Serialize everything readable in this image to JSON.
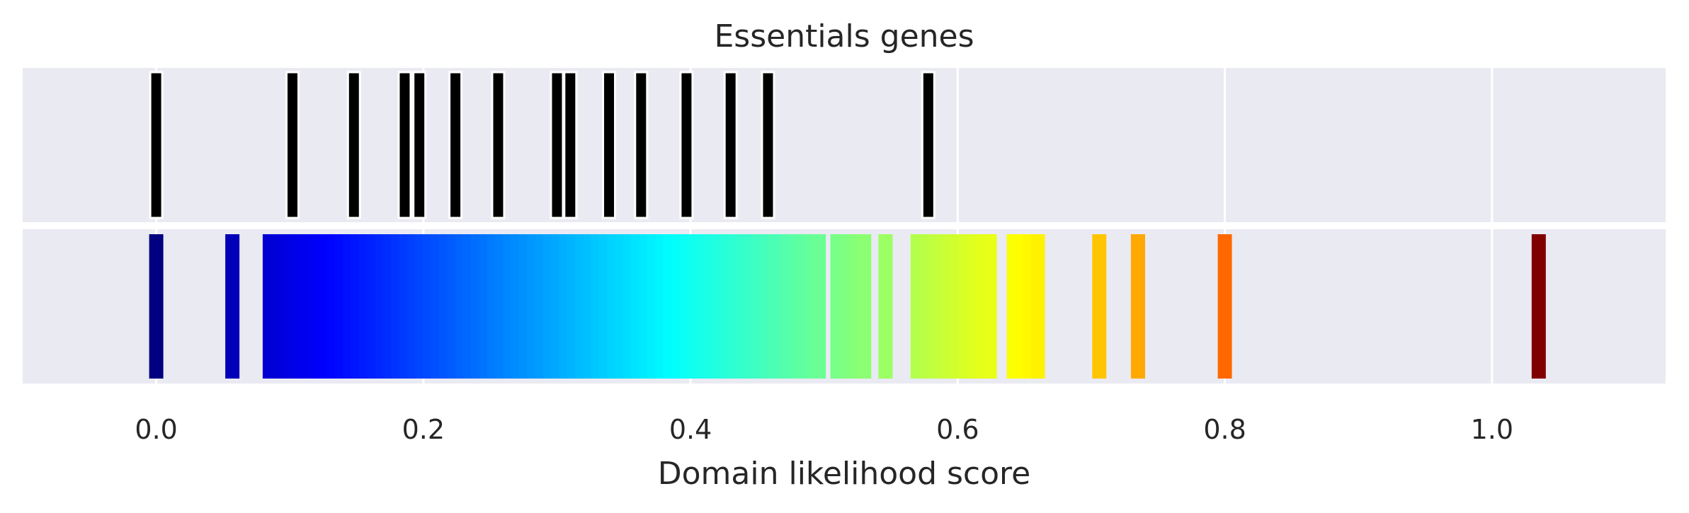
{
  "chart_data": {
    "type": "strip",
    "title": "Essentials genes",
    "xlabel": "Domain likelihood score",
    "xlim": [
      -0.1,
      1.13
    ],
    "xticks": [
      0.0,
      0.2,
      0.4,
      0.6,
      0.8,
      1.0
    ],
    "xtick_labels": [
      "0.0",
      "0.2",
      "0.4",
      "0.6",
      "0.8",
      "1.0"
    ],
    "grid": true,
    "essential_gene_scores": [
      0.0,
      0.102,
      0.148,
      0.186,
      0.197,
      0.224,
      0.256,
      0.3,
      0.31,
      0.339,
      0.363,
      0.397,
      0.43,
      0.458,
      0.578
    ],
    "essential_marker_color": "#000000",
    "colormap": "jet",
    "score_range": [
      0.0,
      1.035
    ],
    "all_gene_scores": [
      0.0,
      0.057,
      0.085,
      0.091,
      0.097,
      0.103,
      0.109,
      0.115,
      0.121,
      0.127,
      0.133,
      0.139,
      0.145,
      0.151,
      0.157,
      0.163,
      0.169,
      0.175,
      0.181,
      0.187,
      0.193,
      0.199,
      0.205,
      0.211,
      0.217,
      0.223,
      0.229,
      0.235,
      0.241,
      0.247,
      0.253,
      0.259,
      0.265,
      0.271,
      0.277,
      0.283,
      0.289,
      0.295,
      0.301,
      0.307,
      0.313,
      0.319,
      0.325,
      0.331,
      0.337,
      0.343,
      0.349,
      0.355,
      0.361,
      0.367,
      0.373,
      0.379,
      0.385,
      0.391,
      0.397,
      0.403,
      0.409,
      0.415,
      0.421,
      0.427,
      0.433,
      0.439,
      0.445,
      0.451,
      0.457,
      0.463,
      0.472,
      0.478,
      0.484,
      0.49,
      0.496,
      0.51,
      0.516,
      0.524,
      0.53,
      0.546,
      0.57,
      0.576,
      0.582,
      0.588,
      0.594,
      0.6,
      0.606,
      0.612,
      0.618,
      0.624,
      0.642,
      0.648,
      0.654,
      0.66,
      0.706,
      0.735,
      0.8,
      1.035
    ]
  }
}
